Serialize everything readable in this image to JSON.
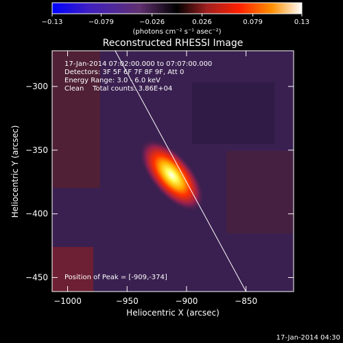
{
  "chart_data": {
    "type": "heatmap",
    "title": "Reconstructed RHESSI Image",
    "xlabel": "Heliocentric X (arcsec)",
    "ylabel": "Heliocentric Y (arcsec)",
    "xlim": [
      -1013,
      -810
    ],
    "ylim": [
      -461,
      -272
    ],
    "xticks": [
      -1000,
      -950,
      -900,
      -850
    ],
    "yticks": [
      -300,
      -350,
      -400,
      -450
    ],
    "colorbar": {
      "ticks": [
        -0.13,
        -0.079,
        -0.026,
        0.026,
        0.079,
        0.13
      ],
      "tick_labels": [
        "-0.13",
        "-0.079",
        "-0.026",
        "0.026",
        "0.079",
        "0.13"
      ],
      "range": [
        -0.13,
        0.13
      ],
      "units_label": "(photons cm⁻² s⁻¹ asec⁻²)",
      "colormap": [
        "#0000ff",
        "#4020c0",
        "#603070",
        "#000000",
        "#a02020",
        "#ff2000",
        "#ff9000",
        "#ffffff"
      ]
    },
    "source_peak": {
      "x": -909,
      "y": -374,
      "value": 0.13
    },
    "limb_line": [
      {
        "x": -960,
        "y": -272
      },
      {
        "x": -850,
        "y": -461
      }
    ],
    "annotations": [
      "17-Jan-2014 07:02:00.000 to 07:07:00.000",
      "Detectors: 3F 5F 6F 7F 8F 9F, Att 0",
      "Energy Range: 3.0 - 6.0 keV",
      "Clean    Total counts: 3.86E+04"
    ],
    "peak_text": "Position of Peak = [-909,-374]"
  },
  "footer": {
    "timestamp": "17-Jan-2014 04:30"
  }
}
